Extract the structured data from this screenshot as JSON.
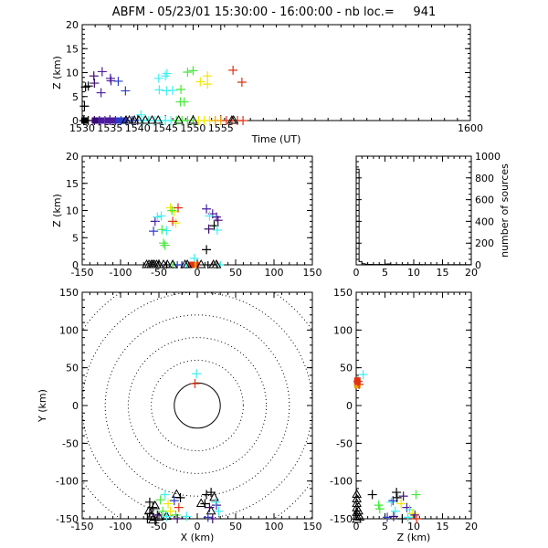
{
  "header": {
    "title": "ABFM - 05/23/01 15:30:00 - 16:00:00 - nb loc.=     941"
  },
  "chart_data": [
    {
      "id": "time_height",
      "type": "scatter",
      "xlabel": "Time (UT)",
      "ylabel": "Z (km)",
      "xlim": [
        1530,
        1600
      ],
      "ylim": [
        0,
        20
      ],
      "xticks": [
        "1530",
        "1535",
        "1540",
        "1545",
        "1550",
        "1555",
        "1600"
      ],
      "yticks": [
        "0",
        "5",
        "10",
        "15",
        "20"
      ],
      "cross_points": [
        {
          "x": 1530.6,
          "y": 7.0,
          "c": "#000000"
        },
        {
          "x": 1531.1,
          "y": 7.2,
          "c": "#000000"
        },
        {
          "x": 1530.4,
          "y": 3.0,
          "c": "#000000"
        },
        {
          "x": 1532.1,
          "y": 9.3,
          "c": "#3b0a6e"
        },
        {
          "x": 1532.2,
          "y": 7.8,
          "c": "#3b0a6e"
        },
        {
          "x": 1533.6,
          "y": 10.2,
          "c": "#4b1d9e"
        },
        {
          "x": 1533.4,
          "y": 5.8,
          "c": "#4b1d9e"
        },
        {
          "x": 1535.1,
          "y": 8.8,
          "c": "#4b1d9e"
        },
        {
          "x": 1535.2,
          "y": 8.3,
          "c": "#4b1d9e"
        },
        {
          "x": 1536.5,
          "y": 8.2,
          "c": "#2a3cc8"
        },
        {
          "x": 1537.8,
          "y": 6.2,
          "c": "#2a3cc8"
        },
        {
          "x": 1543.8,
          "y": 8.8,
          "c": "#3ef0f0"
        },
        {
          "x": 1543.9,
          "y": 6.4,
          "c": "#3ef0f0"
        },
        {
          "x": 1545.0,
          "y": 9.3,
          "c": "#3ef0f0"
        },
        {
          "x": 1545.3,
          "y": 9.8,
          "c": "#3ef0f0"
        },
        {
          "x": 1545.2,
          "y": 6.2,
          "c": "#3ef0f0"
        },
        {
          "x": 1546.3,
          "y": 6.3,
          "c": "#3ef0f0"
        },
        {
          "x": 1547.8,
          "y": 6.5,
          "c": "#46e83c"
        },
        {
          "x": 1547.7,
          "y": 3.9,
          "c": "#46e83c"
        },
        {
          "x": 1548.4,
          "y": 3.9,
          "c": "#46e83c"
        },
        {
          "x": 1549.0,
          "y": 10.1,
          "c": "#46e83c"
        },
        {
          "x": 1550.0,
          "y": 10.4,
          "c": "#46e83c"
        },
        {
          "x": 1551.3,
          "y": 8.1,
          "c": "#f0e800"
        },
        {
          "x": 1552.6,
          "y": 9.3,
          "c": "#f0e800"
        },
        {
          "x": 1552.6,
          "y": 7.6,
          "c": "#f0e800"
        },
        {
          "x": 1557.2,
          "y": 10.5,
          "c": "#e03214"
        },
        {
          "x": 1558.8,
          "y": 8.0,
          "c": "#e03214"
        }
      ],
      "ground_crosses": [
        {
          "x": 1530.3,
          "c": "#000000"
        },
        {
          "x": 1531.1,
          "c": "#000000"
        },
        {
          "x": 1532.2,
          "c": "#3b0a6e"
        },
        {
          "x": 1533.1,
          "c": "#3b0a6e"
        },
        {
          "x": 1534.1,
          "c": "#4b1d9e"
        },
        {
          "x": 1535.0,
          "c": "#4b1d9e"
        },
        {
          "x": 1536.0,
          "c": "#4b1d9e"
        },
        {
          "x": 1537.0,
          "c": "#2a3cc8"
        },
        {
          "x": 1537.9,
          "c": "#2a3cc8"
        },
        {
          "x": 1539.0,
          "c": "#2a3cc8"
        },
        {
          "x": 1540.0,
          "c": "#2a3cc8"
        },
        {
          "x": 1541.0,
          "c": "#3ef0f0"
        },
        {
          "x": 1542.0,
          "c": "#3ef0f0"
        },
        {
          "x": 1543.0,
          "c": "#3ef0f0"
        },
        {
          "x": 1544.0,
          "c": "#3ef0f0"
        },
        {
          "x": 1545.0,
          "c": "#3ef0f0"
        },
        {
          "x": 1546.0,
          "c": "#3ef0f0"
        },
        {
          "x": 1547.0,
          "c": "#46e83c"
        },
        {
          "x": 1548.0,
          "c": "#46e83c"
        },
        {
          "x": 1549.0,
          "c": "#46e83c"
        },
        {
          "x": 1550.0,
          "c": "#46e83c"
        },
        {
          "x": 1551.0,
          "c": "#f0e800"
        },
        {
          "x": 1552.0,
          "c": "#f0e800"
        },
        {
          "x": 1553.0,
          "c": "#f0e800"
        },
        {
          "x": 1554.0,
          "c": "#f0a000"
        },
        {
          "x": 1555.0,
          "c": "#f0a000"
        },
        {
          "x": 1556.0,
          "c": "#e03214"
        },
        {
          "x": 1557.0,
          "c": "#e03214"
        },
        {
          "x": 1558.0,
          "c": "#e03214"
        },
        {
          "x": 1559.0,
          "c": "#e03214"
        },
        {
          "x": 1540.6,
          "y": 1.2,
          "c": "#3ef0f0"
        }
      ],
      "ground_squares": [
        {
          "x": 1530.4,
          "c": "#000000"
        },
        {
          "x": 1532.3,
          "c": "#3b0a6e"
        },
        {
          "x": 1533.4,
          "c": "#4b1d9e"
        },
        {
          "x": 1534.6,
          "c": "#4b1d9e"
        },
        {
          "x": 1535.5,
          "c": "#4b1d9e"
        },
        {
          "x": 1536.6,
          "c": "#2a3cc8"
        },
        {
          "x": 1537.7,
          "c": "#2a3cc8"
        }
      ],
      "triangles": [
        1537.9,
        1538.5,
        1539.4,
        1540.2,
        1541.4,
        1542.6,
        1543.7,
        1547.4,
        1550.0,
        1557.0,
        1557.3
      ]
    },
    {
      "id": "xz",
      "type": "scatter",
      "ylabel": "Z (km)",
      "xlim": [
        -150,
        150
      ],
      "ylim": [
        0,
        20
      ],
      "xticks": [
        "-150",
        "-100",
        "-50",
        "0",
        "50",
        "100",
        "150"
      ],
      "yticks": [
        "0",
        "5",
        "10",
        "15",
        "20"
      ],
      "cross_points": [
        {
          "x": -57,
          "y": 6.2,
          "c": "#2a3cc8"
        },
        {
          "x": -55,
          "y": 8.0,
          "c": "#4b1d9e"
        },
        {
          "x": -52,
          "y": 8.8,
          "c": "#3ef0f0"
        },
        {
          "x": -47,
          "y": 9.0,
          "c": "#3ef0f0"
        },
        {
          "x": -46,
          "y": 6.5,
          "c": "#46e83c"
        },
        {
          "x": -40,
          "y": 6.3,
          "c": "#3ef0f0"
        },
        {
          "x": -44,
          "y": 4.0,
          "c": "#46e83c"
        },
        {
          "x": -42,
          "y": 3.6,
          "c": "#46e83c"
        },
        {
          "x": -35,
          "y": 10.5,
          "c": "#f0e800"
        },
        {
          "x": -30,
          "y": 9.8,
          "c": "#f0e800"
        },
        {
          "x": -33,
          "y": 10.0,
          "c": "#46e83c"
        },
        {
          "x": -28,
          "y": 7.7,
          "c": "#f0e800"
        },
        {
          "x": -25,
          "y": 10.5,
          "c": "#e03214"
        },
        {
          "x": -32,
          "y": 8.0,
          "c": "#e03214"
        },
        {
          "x": 12,
          "y": 10.3,
          "c": "#4b1d9e"
        },
        {
          "x": 20,
          "y": 9.4,
          "c": "#4b1d9e"
        },
        {
          "x": 25,
          "y": 8.8,
          "c": "#4b1d9e"
        },
        {
          "x": 27,
          "y": 8.2,
          "c": "#3b0a6e"
        },
        {
          "x": 22,
          "y": 7.2,
          "c": "#000000"
        },
        {
          "x": 26,
          "y": 6.4,
          "c": "#3ef0f0"
        },
        {
          "x": 15,
          "y": 6.6,
          "c": "#3b0a6e"
        },
        {
          "x": 12,
          "y": 2.8,
          "c": "#000000"
        },
        {
          "x": -4,
          "y": 1.2,
          "c": "#3ef0f0"
        },
        {
          "x": 16,
          "y": 9.0,
          "c": "#3ef0f0"
        }
      ],
      "ground_crosses": [
        {
          "x": -40,
          "c": "#000000"
        },
        {
          "x": -32,
          "c": "#46e83c"
        },
        {
          "x": -26,
          "c": "#2a3cc8"
        },
        {
          "x": -20,
          "c": "#2a3cc8"
        },
        {
          "x": -14,
          "c": "#3ef0f0"
        },
        {
          "x": 14,
          "c": "#000000"
        },
        {
          "x": 26,
          "c": "#000000"
        },
        {
          "x": 30,
          "c": "#3ef0f0"
        }
      ],
      "ground_squares": [
        {
          "x": -2,
          "c": "#e03214"
        },
        {
          "x": -5,
          "c": "#f0a000"
        },
        {
          "x": -8,
          "c": "#e03214"
        }
      ],
      "triangles": [
        -66,
        -63,
        -60,
        -58,
        -56,
        -53,
        -50,
        -44,
        -39,
        -32,
        -16,
        -13,
        5,
        21,
        25
      ]
    },
    {
      "id": "histogram",
      "type": "line",
      "ylabel": "number of sources",
      "xlim": [
        0,
        20
      ],
      "ylim": [
        0,
        1000
      ],
      "xticks": [
        "0",
        "5",
        "10",
        "15",
        "20"
      ],
      "yticks": [
        "0",
        "200",
        "400",
        "600",
        "800",
        "1000"
      ],
      "x": [
        0,
        0.5,
        1,
        1.5,
        2,
        2.5,
        3,
        3.5,
        4,
        4.5,
        5,
        5.5,
        6,
        6.5,
        7,
        7.5,
        8,
        8.5,
        9,
        9.5,
        10,
        10.5,
        11,
        11.5,
        12,
        12.5,
        13,
        13.5,
        14,
        14.5,
        15,
        15.5,
        16,
        16.5,
        17,
        17.5,
        18,
        18.5,
        19,
        19.5
      ],
      "values": [
        880,
        30,
        10,
        6,
        4,
        4,
        3,
        3,
        4,
        3,
        7,
        8,
        3,
        3,
        3,
        2,
        3,
        3,
        3,
        3,
        3,
        3,
        3,
        2,
        2,
        2,
        2,
        2,
        2,
        2,
        2,
        2,
        2,
        2,
        2,
        2,
        2,
        2,
        2,
        2
      ]
    },
    {
      "id": "xy",
      "type": "scatter",
      "xlabel": "X (km)",
      "ylabel": "Y (km)",
      "xlim": [
        -150,
        150
      ],
      "ylim": [
        -150,
        150
      ],
      "xticks": [
        "-150",
        "-100",
        "-50",
        "0",
        "50",
        "100",
        "150"
      ],
      "yticks": [
        "-150",
        "-100",
        "-50",
        "0",
        "50",
        "100",
        "150"
      ],
      "range_rings": [
        30,
        60,
        90,
        120,
        150,
        180,
        210
      ],
      "cross_points": [
        {
          "x": -1,
          "y": 42,
          "c": "#3ef0f0"
        },
        {
          "x": -3,
          "y": 29,
          "c": "#e03214"
        },
        {
          "x": -62,
          "y": -128,
          "c": "#000000"
        },
        {
          "x": -58,
          "y": -135,
          "c": "#000000"
        },
        {
          "x": -62,
          "y": -143,
          "c": "#000000"
        },
        {
          "x": -65,
          "y": -150,
          "c": "#000000"
        },
        {
          "x": -52,
          "y": -145,
          "c": "#3b0a6e"
        },
        {
          "x": -45,
          "y": -140,
          "c": "#46e83c"
        },
        {
          "x": -48,
          "y": -125,
          "c": "#46e83c"
        },
        {
          "x": -42,
          "y": -118,
          "c": "#3ef0f0"
        },
        {
          "x": -38,
          "y": -130,
          "c": "#f0e800"
        },
        {
          "x": -35,
          "y": -140,
          "c": "#f0e800"
        },
        {
          "x": -30,
          "y": -126,
          "c": "#2a3cc8"
        },
        {
          "x": -28,
          "y": -145,
          "c": "#46e83c"
        },
        {
          "x": -24,
          "y": -135,
          "c": "#e03214"
        },
        {
          "x": -26,
          "y": -150,
          "c": "#3b0a6e"
        },
        {
          "x": -22,
          "y": -122,
          "c": "#000000"
        },
        {
          "x": 12,
          "y": -118,
          "c": "#000000"
        },
        {
          "x": 18,
          "y": -115,
          "c": "#000000"
        },
        {
          "x": 10,
          "y": -130,
          "c": "#000000"
        },
        {
          "x": 16,
          "y": -135,
          "c": "#3b0a6e"
        },
        {
          "x": 25,
          "y": -132,
          "c": "#4b1d9e"
        },
        {
          "x": 24,
          "y": -128,
          "c": "#3ef0f0"
        },
        {
          "x": 28,
          "y": -140,
          "c": "#3ef0f0"
        },
        {
          "x": 14,
          "y": -148,
          "c": "#2a3cc8"
        },
        {
          "x": 20,
          "y": -150,
          "c": "#3b0a6e"
        },
        {
          "x": -55,
          "y": -152,
          "c": "#000000"
        },
        {
          "x": -40,
          "y": -147,
          "c": "#3ef0f0"
        },
        {
          "x": -14,
          "y": -147,
          "c": "#3ef0f0"
        }
      ],
      "triangles": [
        {
          "x": -40,
          "y": -147
        },
        {
          "x": -27,
          "y": -118
        },
        {
          "x": -55,
          "y": -133
        },
        {
          "x": -63,
          "y": -140
        },
        {
          "x": -60,
          "y": -147
        },
        {
          "x": -58,
          "y": -152
        },
        {
          "x": 5,
          "y": -130
        },
        {
          "x": 22,
          "y": -122
        },
        {
          "x": 18,
          "y": -140
        },
        {
          "x": -50,
          "y": -148
        }
      ]
    },
    {
      "id": "zy",
      "type": "scatter",
      "xlabel": "Z (km)",
      "xlim": [
        0,
        20
      ],
      "ylim": [
        -150,
        150
      ],
      "xticks": [
        "0",
        "5",
        "10",
        "15",
        "20"
      ],
      "yticks": [
        "-150",
        "-100",
        "-50",
        "0",
        "50",
        "100",
        "150"
      ],
      "cross_points": [
        {
          "x": 1.2,
          "y": 41,
          "c": "#3ef0f0"
        },
        {
          "x": 0.3,
          "y": 32,
          "c": "#e03214"
        },
        {
          "x": 0.5,
          "y": 28,
          "c": "#e03214"
        },
        {
          "x": 2.8,
          "y": -118,
          "c": "#000000"
        },
        {
          "x": 3.9,
          "y": -132,
          "c": "#46e83c"
        },
        {
          "x": 4.1,
          "y": -137,
          "c": "#46e83c"
        },
        {
          "x": 6.1,
          "y": -128,
          "c": "#3ef0f0"
        },
        {
          "x": 6.4,
          "y": -126,
          "c": "#2a3cc8"
        },
        {
          "x": 7.1,
          "y": -122,
          "c": "#000000"
        },
        {
          "x": 7.0,
          "y": -115,
          "c": "#000000"
        },
        {
          "x": 7.8,
          "y": -130,
          "c": "#f0e800"
        },
        {
          "x": 8.2,
          "y": -120,
          "c": "#3b0a6e"
        },
        {
          "x": 8.8,
          "y": -135,
          "c": "#4b1d9e"
        },
        {
          "x": 9.3,
          "y": -138,
          "c": "#3ef0f0"
        },
        {
          "x": 9.8,
          "y": -143,
          "c": "#f0e800"
        },
        {
          "x": 10.2,
          "y": -145,
          "c": "#4b1d9e"
        },
        {
          "x": 10.5,
          "y": -150,
          "c": "#e03214"
        },
        {
          "x": 10.4,
          "y": -118,
          "c": "#46e83c"
        },
        {
          "x": 8.0,
          "y": -150,
          "c": "#000000"
        },
        {
          "x": 6.8,
          "y": -140,
          "c": "#3ef0f0"
        },
        {
          "x": 6.5,
          "y": -147,
          "c": "#3b0a6e"
        },
        {
          "x": 9.0,
          "y": -148,
          "c": "#3ef0f0"
        },
        {
          "x": 5.4,
          "y": -148,
          "c": "#2a3cc8"
        }
      ],
      "triangles": [
        {
          "x": 0.1,
          "y": -118
        },
        {
          "x": 0.1,
          "y": -124
        },
        {
          "x": 0.1,
          "y": -130
        },
        {
          "x": 0.1,
          "y": -136
        },
        {
          "x": 0.1,
          "y": -142
        },
        {
          "x": 0.1,
          "y": -147
        },
        {
          "x": 0.1,
          "y": -151
        },
        {
          "x": 0.4,
          "y": -140
        },
        {
          "x": 0.6,
          "y": -148
        }
      ],
      "ground_squares": [
        {
          "x": 0.2,
          "y": 30,
          "c": "#e03214"
        },
        {
          "x": 0.2,
          "y": 27,
          "c": "#f0a000"
        },
        {
          "x": 0.2,
          "y": 33,
          "c": "#e03214"
        }
      ]
    }
  ]
}
